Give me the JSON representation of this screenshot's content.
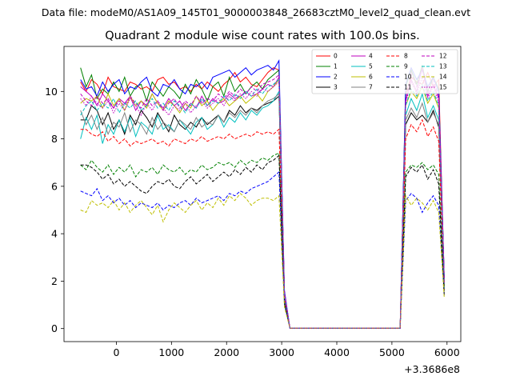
{
  "suptitle": "Data file: modeM0/AS1A09_145T01_9000003848_26683cztM0_level2_quad_clean.evt",
  "chart_data": {
    "type": "line",
    "title": "Quadrant 2 module wise count rates with 100.0s bins.",
    "xlabel": "",
    "ylabel": "",
    "x_offset_label": "+3.3686e8",
    "xlim": [
      -950,
      6250
    ],
    "ylim": [
      -0.55,
      11.9
    ],
    "xticks": [
      0,
      1000,
      2000,
      3000,
      4000,
      5000,
      6000
    ],
    "yticks": [
      0,
      2,
      4,
      6,
      8,
      10
    ],
    "grid": false,
    "legend_position": "top-right",
    "x": [
      -650,
      -550,
      -450,
      -350,
      -250,
      -150,
      -50,
      50,
      150,
      250,
      350,
      450,
      550,
      650,
      750,
      850,
      950,
      1050,
      1150,
      1250,
      1350,
      1450,
      1550,
      1650,
      1750,
      1850,
      1950,
      2050,
      2150,
      2250,
      2350,
      2450,
      2550,
      2650,
      2750,
      2850,
      2950,
      3050,
      3150,
      3250,
      3350,
      3450,
      3550,
      3650,
      3750,
      3850,
      3950,
      4050,
      4150,
      4250,
      4350,
      4450,
      4550,
      4650,
      4750,
      4850,
      4950,
      5050,
      5150,
      5250,
      5350,
      5450,
      5550,
      5650,
      5750,
      5850,
      5950
    ],
    "series": [
      {
        "name": "0",
        "color": "#ff0000",
        "dash": "solid",
        "values": [
          10.4,
          10.0,
          10.5,
          10.3,
          9.9,
          10.6,
          10.2,
          10.1,
          10.0,
          10.4,
          10.3,
          10.1,
          10.2,
          10.0,
          10.5,
          10.6,
          10.3,
          10.4,
          10.1,
          10.2,
          10.0,
          10.3,
          10.1,
          10.4,
          10.2,
          10.0,
          10.3,
          10.5,
          10.8,
          10.4,
          10.6,
          10.3,
          10.2,
          10.5,
          10.8,
          11.0,
          10.9,
          1.5,
          0.02,
          0.02,
          0.02,
          0.02,
          0.02,
          0.02,
          0.02,
          0.02,
          0.02,
          0.02,
          0.02,
          0.02,
          0.02,
          0.02,
          0.02,
          0.02,
          0.02,
          0.02,
          0.02,
          0.02,
          0.02,
          9.9,
          10.6,
          10.4,
          10.3,
          10.8,
          10.2,
          10.5,
          2.1
        ]
      },
      {
        "name": "1",
        "color": "#008000",
        "dash": "solid",
        "values": [
          11.0,
          10.2,
          10.7,
          9.7,
          10.1,
          9.9,
          10.4,
          10.0,
          10.6,
          9.8,
          10.2,
          10.3,
          9.6,
          10.4,
          10.1,
          9.8,
          10.2,
          10.0,
          9.7,
          10.3,
          9.9,
          10.5,
          10.1,
          9.6,
          10.2,
          10.4,
          9.8,
          10.6,
          10.0,
          10.3,
          9.9,
          10.2,
          10.4,
          10.1,
          10.5,
          10.7,
          10.9,
          1.4,
          0.02,
          0.02,
          0.02,
          0.02,
          0.02,
          0.02,
          0.02,
          0.02,
          0.02,
          0.02,
          0.02,
          0.02,
          0.02,
          0.02,
          0.02,
          0.02,
          0.02,
          0.02,
          0.02,
          0.02,
          0.02,
          10.2,
          10.9,
          10.3,
          11.1,
          10.0,
          10.6,
          10.1,
          2.1
        ]
      },
      {
        "name": "2",
        "color": "#0000ff",
        "dash": "solid",
        "values": [
          10.5,
          10.1,
          10.2,
          9.8,
          10.4,
          10.0,
          10.3,
          10.5,
          9.9,
          10.2,
          10.1,
          10.4,
          10.6,
          10.0,
          9.8,
          10.3,
          10.2,
          10.5,
          10.1,
          9.9,
          10.3,
          10.2,
          10.4,
          10.1,
          10.6,
          10.7,
          10.8,
          10.9,
          10.6,
          10.8,
          11.0,
          10.7,
          10.9,
          11.0,
          11.1,
          10.9,
          11.3,
          1.6,
          0.02,
          0.02,
          0.02,
          0.02,
          0.02,
          0.02,
          0.02,
          0.02,
          0.02,
          0.02,
          0.02,
          0.02,
          0.02,
          0.02,
          0.02,
          0.02,
          0.02,
          0.02,
          0.02,
          0.02,
          0.02,
          10.3,
          11.0,
          10.5,
          10.9,
          10.2,
          10.6,
          10.0,
          2.2
        ]
      },
      {
        "name": "3",
        "color": "#000000",
        "dash": "solid",
        "values": [
          8.8,
          8.8,
          9.4,
          9.2,
          8.6,
          9.1,
          8.4,
          8.8,
          8.2,
          9.0,
          8.6,
          9.2,
          8.9,
          8.5,
          9.1,
          8.7,
          8.3,
          9.0,
          8.6,
          8.4,
          8.7,
          8.5,
          8.9,
          8.6,
          8.8,
          9.0,
          8.7,
          9.2,
          9.0,
          9.4,
          9.1,
          9.3,
          9.2,
          9.4,
          9.5,
          9.6,
          9.8,
          1.3,
          0.02,
          0.02,
          0.02,
          0.02,
          0.02,
          0.02,
          0.02,
          0.02,
          0.02,
          0.02,
          0.02,
          0.02,
          0.02,
          0.02,
          0.02,
          0.02,
          0.02,
          0.02,
          0.02,
          0.02,
          0.02,
          8.6,
          9.1,
          8.8,
          9.0,
          8.7,
          9.2,
          8.5,
          1.8
        ]
      },
      {
        "name": "4",
        "color": "#bf00bf",
        "dash": "solid",
        "values": [
          10.2,
          10.0,
          9.8,
          9.4,
          9.9,
          9.6,
          9.3,
          9.7,
          9.5,
          9.8,
          9.2,
          9.6,
          9.4,
          9.9,
          9.5,
          9.3,
          9.7,
          9.4,
          9.6,
          9.2,
          9.5,
          9.3,
          9.8,
          9.4,
          9.7,
          9.5,
          9.6,
          9.9,
          9.7,
          9.8,
          10.0,
          9.8,
          9.9,
          10.1,
          10.3,
          10.2,
          10.6,
          1.5,
          0.02,
          0.02,
          0.02,
          0.02,
          0.02,
          0.02,
          0.02,
          0.02,
          0.02,
          0.02,
          0.02,
          0.02,
          0.02,
          0.02,
          0.02,
          0.02,
          0.02,
          0.02,
          0.02,
          0.02,
          0.02,
          9.6,
          10.5,
          10.0,
          11.0,
          9.8,
          10.3,
          9.7,
          2.0
        ]
      },
      {
        "name": "5",
        "color": "#00bfbf",
        "dash": "solid",
        "values": [
          8.0,
          8.9,
          8.4,
          9.0,
          7.8,
          8.6,
          8.2,
          8.8,
          8.3,
          8.9,
          8.1,
          8.7,
          8.5,
          8.2,
          9.0,
          8.4,
          8.6,
          8.3,
          8.8,
          8.5,
          8.2,
          8.7,
          8.9,
          8.4,
          8.6,
          9.0,
          8.5,
          8.9,
          8.7,
          9.1,
          8.8,
          9.2,
          9.0,
          9.3,
          9.4,
          9.6,
          10.0,
          1.3,
          0.02,
          0.02,
          0.02,
          0.02,
          0.02,
          0.02,
          0.02,
          0.02,
          0.02,
          0.02,
          0.02,
          0.02,
          0.02,
          0.02,
          0.02,
          0.02,
          0.02,
          0.02,
          0.02,
          0.02,
          0.02,
          9.0,
          9.7,
          9.2,
          9.9,
          8.9,
          9.4,
          8.8,
          1.7
        ]
      },
      {
        "name": "6",
        "color": "#bfbf00",
        "dash": "solid",
        "values": [
          9.5,
          9.7,
          9.6,
          9.8,
          9.3,
          9.9,
          9.4,
          9.7,
          9.2,
          9.8,
          9.4,
          9.6,
          9.3,
          9.9,
          9.5,
          9.2,
          9.6,
          9.4,
          9.1,
          9.5,
          9.3,
          9.8,
          9.4,
          9.6,
          9.2,
          9.5,
          9.7,
          9.4,
          9.6,
          9.8,
          9.5,
          9.7,
          9.9,
          9.6,
          10.0,
          10.2,
          10.5,
          1.4,
          0.02,
          0.02,
          0.02,
          0.02,
          0.02,
          0.02,
          0.02,
          0.02,
          0.02,
          0.02,
          0.02,
          0.02,
          0.02,
          0.02,
          0.02,
          0.02,
          0.02,
          0.02,
          0.02,
          0.02,
          0.02,
          9.4,
          10.0,
          9.7,
          10.2,
          9.5,
          9.9,
          9.3,
          1.9
        ]
      },
      {
        "name": "7",
        "color": "#808080",
        "dash": "solid",
        "values": [
          9.2,
          8.6,
          9.0,
          8.4,
          8.9,
          8.2,
          8.7,
          8.5,
          9.1,
          8.3,
          8.8,
          8.6,
          8.2,
          8.9,
          8.4,
          8.7,
          8.5,
          8.3,
          8.8,
          8.6,
          8.4,
          8.9,
          8.5,
          8.7,
          8.6,
          9.0,
          8.7,
          9.1,
          8.9,
          9.2,
          9.0,
          9.3,
          9.1,
          9.4,
          9.6,
          9.7,
          9.9,
          1.4,
          0.02,
          0.02,
          0.02,
          0.02,
          0.02,
          0.02,
          0.02,
          0.02,
          0.02,
          0.02,
          0.02,
          0.02,
          0.02,
          0.02,
          0.02,
          0.02,
          0.02,
          0.02,
          0.02,
          0.02,
          0.02,
          8.8,
          9.3,
          8.9,
          9.5,
          8.7,
          9.1,
          8.6,
          1.8
        ]
      },
      {
        "name": "8",
        "color": "#ff0000",
        "dash": "dashed",
        "values": [
          8.4,
          8.4,
          8.2,
          8.1,
          8.3,
          7.9,
          8.1,
          7.8,
          8.0,
          7.7,
          7.9,
          7.8,
          7.9,
          8.0,
          7.8,
          7.9,
          7.7,
          8.0,
          7.9,
          7.8,
          8.0,
          7.9,
          8.1,
          7.9,
          8.0,
          8.1,
          8.0,
          8.2,
          8.0,
          8.1,
          8.2,
          8.1,
          8.3,
          8.2,
          8.3,
          8.2,
          8.4,
          1.2,
          0.02,
          0.02,
          0.02,
          0.02,
          0.02,
          0.02,
          0.02,
          0.02,
          0.02,
          0.02,
          0.02,
          0.02,
          0.02,
          0.02,
          0.02,
          0.02,
          0.02,
          0.02,
          0.02,
          0.02,
          0.02,
          8.0,
          8.6,
          8.3,
          8.8,
          8.1,
          8.5,
          7.9,
          1.6
        ]
      },
      {
        "name": "9",
        "color": "#008000",
        "dash": "dashed",
        "values": [
          6.9,
          6.7,
          7.1,
          6.8,
          6.6,
          6.9,
          6.5,
          6.8,
          6.6,
          6.9,
          6.4,
          6.7,
          6.6,
          6.8,
          6.5,
          6.9,
          6.7,
          6.6,
          6.8,
          6.5,
          6.7,
          6.6,
          6.9,
          6.7,
          6.8,
          7.0,
          6.9,
          7.0,
          6.8,
          7.1,
          6.9,
          7.1,
          7.0,
          7.2,
          7.1,
          7.3,
          7.4,
          1.1,
          0.02,
          0.02,
          0.02,
          0.02,
          0.02,
          0.02,
          0.02,
          0.02,
          0.02,
          0.02,
          0.02,
          0.02,
          0.02,
          0.02,
          0.02,
          0.02,
          0.02,
          0.02,
          0.02,
          0.02,
          0.02,
          6.6,
          6.9,
          6.8,
          7.0,
          6.7,
          6.9,
          6.5,
          1.5
        ]
      },
      {
        "name": "10",
        "color": "#0000ff",
        "dash": "dashed",
        "values": [
          5.8,
          5.7,
          5.6,
          5.9,
          5.4,
          5.6,
          5.3,
          5.5,
          5.2,
          5.4,
          5.1,
          5.3,
          5.2,
          5.1,
          5.3,
          5.0,
          5.2,
          5.1,
          5.3,
          5.4,
          5.2,
          5.5,
          5.3,
          5.4,
          5.5,
          5.6,
          5.4,
          5.7,
          5.6,
          5.8,
          5.7,
          5.9,
          6.0,
          6.1,
          6.2,
          6.4,
          6.6,
          1.0,
          0.02,
          0.02,
          0.02,
          0.02,
          0.02,
          0.02,
          0.02,
          0.02,
          0.02,
          0.02,
          0.02,
          0.02,
          0.02,
          0.02,
          0.02,
          0.02,
          0.02,
          0.02,
          0.02,
          0.02,
          0.02,
          5.4,
          5.7,
          5.5,
          4.9,
          5.3,
          5.6,
          5.2,
          1.4
        ]
      },
      {
        "name": "11",
        "color": "#000000",
        "dash": "dashed",
        "values": [
          6.9,
          6.9,
          6.8,
          6.6,
          6.3,
          6.5,
          6.1,
          6.3,
          6.0,
          6.2,
          6.0,
          5.8,
          5.7,
          6.0,
          6.2,
          6.1,
          6.3,
          6.0,
          5.9,
          6.2,
          6.4,
          6.1,
          6.3,
          6.5,
          6.2,
          6.4,
          6.6,
          6.4,
          6.7,
          6.5,
          6.8,
          6.6,
          6.9,
          6.7,
          7.0,
          7.1,
          7.3,
          1.1,
          0.02,
          0.02,
          0.02,
          0.02,
          0.02,
          0.02,
          0.02,
          0.02,
          0.02,
          0.02,
          0.02,
          0.02,
          0.02,
          0.02,
          0.02,
          0.02,
          0.02,
          0.02,
          0.02,
          0.02,
          0.02,
          6.4,
          6.8,
          6.6,
          6.9,
          6.3,
          6.7,
          6.1,
          1.4
        ]
      },
      {
        "name": "12",
        "color": "#bf00bf",
        "dash": "dashed",
        "values": [
          9.9,
          9.6,
          9.4,
          9.8,
          9.5,
          9.7,
          9.3,
          9.6,
          9.4,
          9.8,
          9.5,
          9.3,
          9.7,
          9.4,
          9.6,
          9.2,
          9.5,
          9.7,
          9.3,
          9.6,
          9.4,
          9.8,
          9.5,
          9.7,
          9.6,
          9.9,
          9.7,
          10.0,
          9.8,
          10.1,
          9.9,
          10.2,
          10.0,
          10.3,
          10.4,
          10.5,
          10.7,
          1.5,
          0.02,
          0.02,
          0.02,
          0.02,
          0.02,
          0.02,
          0.02,
          0.02,
          0.02,
          0.02,
          0.02,
          0.02,
          0.02,
          0.02,
          0.02,
          0.02,
          0.02,
          0.02,
          0.02,
          0.02,
          0.02,
          9.6,
          10.8,
          10.2,
          11.0,
          9.9,
          10.5,
          9.8,
          2.0
        ]
      },
      {
        "name": "13",
        "color": "#00bfbf",
        "dash": "dashed",
        "values": [
          9.0,
          9.4,
          9.6,
          9.2,
          9.5,
          9.3,
          9.7,
          9.1,
          9.5,
          9.3,
          9.6,
          9.2,
          9.4,
          9.7,
          9.3,
          9.5,
          9.2,
          9.6,
          9.4,
          9.1,
          9.5,
          9.3,
          9.7,
          9.4,
          9.6,
          9.5,
          9.8,
          9.6,
          9.9,
          9.7,
          10.0,
          9.8,
          10.1,
          9.9,
          10.2,
          10.3,
          10.5,
          1.4,
          0.02,
          0.02,
          0.02,
          0.02,
          0.02,
          0.02,
          0.02,
          0.02,
          0.02,
          0.02,
          0.02,
          0.02,
          0.02,
          0.02,
          0.02,
          0.02,
          0.02,
          0.02,
          0.02,
          0.02,
          0.02,
          9.4,
          10.1,
          9.8,
          10.3,
          9.6,
          10.0,
          9.4,
          1.9
        ]
      },
      {
        "name": "14",
        "color": "#bfbf00",
        "dash": "dashed",
        "values": [
          5.0,
          4.9,
          5.4,
          5.2,
          5.3,
          5.1,
          5.4,
          5.0,
          5.3,
          4.9,
          5.2,
          5.4,
          5.1,
          4.8,
          5.2,
          4.5,
          5.0,
          5.3,
          5.1,
          4.9,
          5.2,
          5.4,
          5.0,
          5.3,
          5.1,
          5.5,
          5.2,
          5.6,
          5.4,
          5.7,
          5.5,
          5.2,
          5.4,
          5.5,
          5.5,
          5.4,
          5.6,
          0.9,
          0.02,
          0.02,
          0.02,
          0.02,
          0.02,
          0.02,
          0.02,
          0.02,
          0.02,
          0.02,
          0.02,
          0.02,
          0.02,
          0.02,
          0.02,
          0.02,
          0.02,
          0.02,
          0.02,
          0.02,
          0.02,
          5.6,
          5.2,
          5.5,
          5.3,
          5.0,
          5.4,
          4.9,
          1.3
        ]
      },
      {
        "name": "15",
        "color": "#bf00bf",
        "dash": "dotted",
        "values": [
          9.7,
          9.4,
          9.8,
          9.5,
          9.3,
          9.6,
          9.1,
          9.5,
          9.2,
          9.7,
          9.4,
          9.0,
          9.5,
          9.2,
          9.6,
          9.3,
          9.0,
          9.4,
          9.2,
          9.5,
          9.1,
          9.4,
          9.6,
          9.3,
          9.5,
          9.7,
          9.4,
          9.8,
          9.6,
          9.9,
          9.7,
          10.0,
          9.8,
          10.1,
          10.0,
          10.2,
          10.4,
          1.4,
          0.02,
          0.02,
          0.02,
          0.02,
          0.02,
          0.02,
          0.02,
          0.02,
          0.02,
          0.02,
          0.02,
          0.02,
          0.02,
          0.02,
          0.02,
          0.02,
          0.02,
          0.02,
          0.02,
          0.02,
          0.02,
          9.5,
          10.4,
          9.9,
          10.6,
          9.7,
          10.2,
          9.5,
          1.9
        ]
      }
    ]
  }
}
